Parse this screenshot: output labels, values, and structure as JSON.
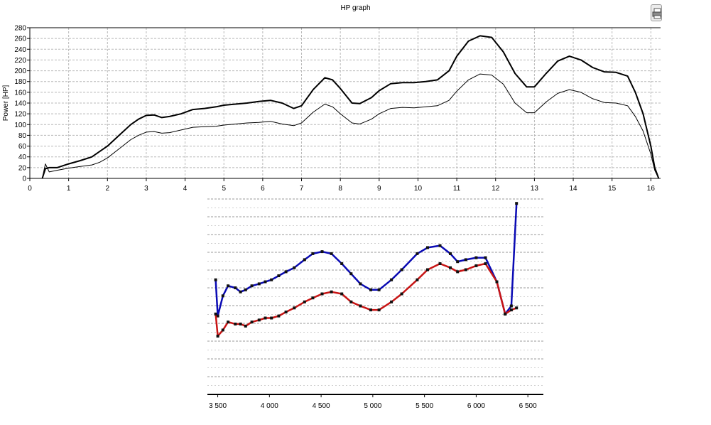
{
  "toolbar": {
    "print_icon": "printer-icon"
  },
  "chart_data": [
    {
      "type": "line",
      "title": "HP graph",
      "xlabel": "",
      "ylabel": "Power [HP]",
      "xlim": [
        0,
        16.25
      ],
      "ylim": [
        0,
        280
      ],
      "xticks": [
        "0",
        "1",
        "2",
        "3",
        "4",
        "5",
        "6",
        "7",
        "8",
        "9",
        "10",
        "11",
        "12",
        "13",
        "14",
        "15",
        "16"
      ],
      "yticks": [
        "0",
        "20",
        "40",
        "60",
        "80",
        "100",
        "120",
        "140",
        "160",
        "180",
        "200",
        "220",
        "240",
        "260",
        "280"
      ],
      "grid": true,
      "series": [
        {
          "color": "#000000",
          "x": [
            0.32,
            0.4,
            0.5,
            0.7,
            1.0,
            1.3,
            1.6,
            1.8,
            2.0,
            2.3,
            2.6,
            2.8,
            3.0,
            3.2,
            3.4,
            3.6,
            3.9,
            4.2,
            4.5,
            4.8,
            5.0,
            5.3,
            5.6,
            5.9,
            6.2,
            6.5,
            6.8,
            7.0,
            7.3,
            7.6,
            7.8,
            8.0,
            8.3,
            8.5,
            8.8,
            9.0,
            9.3,
            9.6,
            9.9,
            10.2,
            10.5,
            10.8,
            11.0,
            11.3,
            11.6,
            11.9,
            12.2,
            12.5,
            12.8,
            13.0,
            13.3,
            13.6,
            13.9,
            14.2,
            14.5,
            14.8,
            15.1,
            15.4,
            15.6,
            15.8,
            16.0,
            16.1,
            16.2
          ],
          "y": [
            0,
            18,
            20,
            20,
            27,
            33,
            40,
            50,
            60,
            80,
            100,
            110,
            117,
            118,
            113,
            115,
            120,
            128,
            130,
            133,
            136,
            138,
            140,
            143,
            145,
            140,
            130,
            135,
            165,
            187,
            183,
            167,
            140,
            139,
            150,
            163,
            176,
            178,
            178,
            180,
            183,
            200,
            227,
            255,
            265,
            262,
            235,
            195,
            170,
            170,
            195,
            218,
            227,
            220,
            206,
            198,
            197,
            190,
            160,
            120,
            60,
            20,
            0
          ]
        },
        {
          "color": "#000000",
          "x": [
            0.32,
            0.4,
            0.5,
            0.7,
            1.0,
            1.3,
            1.6,
            1.8,
            2.0,
            2.3,
            2.6,
            2.8,
            3.0,
            3.2,
            3.4,
            3.6,
            3.9,
            4.2,
            4.5,
            4.8,
            5.0,
            5.3,
            5.6,
            5.9,
            6.2,
            6.5,
            6.8,
            7.0,
            7.3,
            7.6,
            7.8,
            8.0,
            8.3,
            8.5,
            8.8,
            9.0,
            9.3,
            9.6,
            9.9,
            10.2,
            10.5,
            10.8,
            11.0,
            11.3,
            11.6,
            11.9,
            12.2,
            12.5,
            12.8,
            13.0,
            13.3,
            13.6,
            13.9,
            14.2,
            14.5,
            14.8,
            15.1,
            15.4,
            15.6,
            15.8,
            16.0,
            16.1,
            16.2
          ],
          "y": [
            0,
            27,
            12,
            15,
            19,
            22,
            25,
            30,
            38,
            55,
            72,
            80,
            86,
            87,
            84,
            85,
            90,
            95,
            96,
            97,
            99,
            101,
            103,
            104,
            106,
            101,
            98,
            103,
            123,
            138,
            133,
            120,
            103,
            101,
            110,
            120,
            130,
            132,
            131,
            133,
            135,
            145,
            162,
            183,
            194,
            192,
            175,
            140,
            122,
            122,
            142,
            158,
            165,
            160,
            148,
            141,
            140,
            135,
            115,
            88,
            45,
            15,
            0
          ]
        }
      ]
    },
    {
      "type": "line",
      "title": "",
      "xlabel": "",
      "ylabel": "",
      "xlim": [
        3400,
        6650
      ],
      "xticks": [
        "3 500",
        "4 000",
        "4 500",
        "5 000",
        "5 500",
        "6 000",
        "6 500"
      ],
      "xtick_values": [
        3500,
        4000,
        4500,
        5000,
        5500,
        6000,
        6500
      ],
      "ylim": [
        0,
        100
      ],
      "grid": true,
      "series": [
        {
          "color": "#0a0ab4",
          "x": [
            3480,
            3500,
            3550,
            3600,
            3670,
            3720,
            3770,
            3830,
            3900,
            3960,
            4020,
            4090,
            4160,
            4240,
            4340,
            4420,
            4510,
            4600,
            4700,
            4790,
            4880,
            4980,
            5060,
            5180,
            5280,
            5430,
            5530,
            5650,
            5750,
            5820,
            5900,
            6000,
            6090,
            6200,
            6280,
            6340,
            6390
          ],
          "y": [
            57,
            39,
            49,
            54,
            53,
            51,
            52,
            54,
            55,
            56,
            57,
            59,
            61,
            63,
            67,
            70,
            71,
            70,
            65,
            60,
            55,
            52,
            52,
            57,
            62,
            70,
            73,
            74,
            70,
            66,
            67,
            68,
            68,
            56,
            40,
            44,
            95
          ],
          "markers": true
        },
        {
          "color": "#c81414",
          "x": [
            3480,
            3500,
            3550,
            3600,
            3670,
            3720,
            3770,
            3830,
            3900,
            3960,
            4020,
            4090,
            4160,
            4240,
            4340,
            4420,
            4510,
            4600,
            4700,
            4790,
            4880,
            4980,
            5060,
            5180,
            5280,
            5430,
            5530,
            5650,
            5750,
            5820,
            5900,
            6000,
            6090,
            6200,
            6280,
            6340,
            6390
          ],
          "y": [
            40,
            29,
            32,
            36,
            35,
            35,
            34,
            36,
            37,
            38,
            38,
            39,
            41,
            43,
            46,
            48,
            50,
            51,
            50,
            46,
            44,
            42,
            42,
            46,
            50,
            57,
            62,
            65,
            63,
            61,
            62,
            64,
            65,
            56,
            40,
            42,
            43
          ],
          "markers": true
        }
      ]
    }
  ]
}
